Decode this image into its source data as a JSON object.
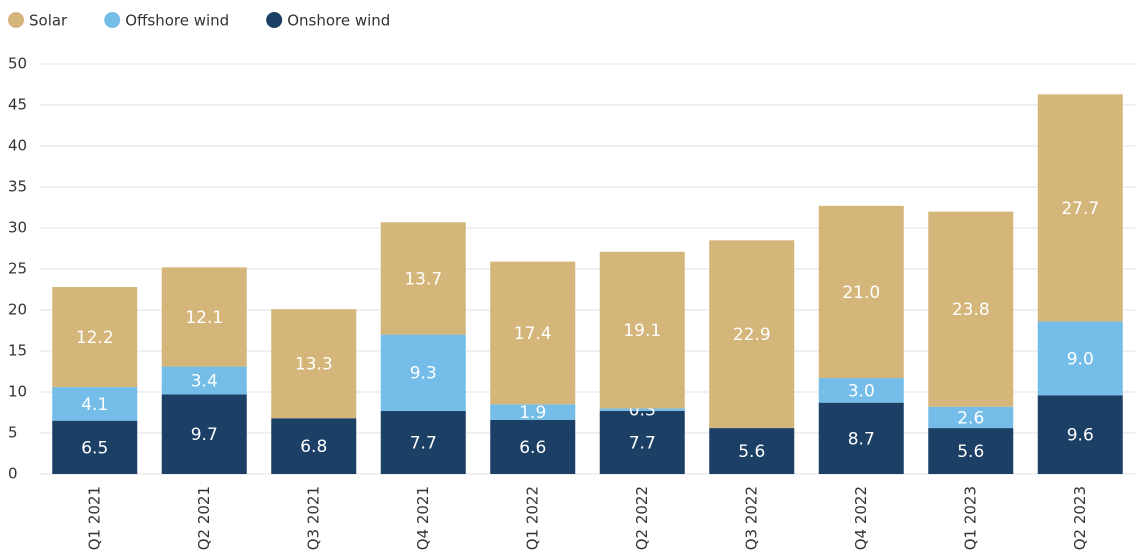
{
  "chart_data": {
    "type": "stacked_bar",
    "categories": [
      "Q1 2021",
      "Q2 2021",
      "Q3 2021",
      "Q4 2021",
      "Q1 2022",
      "Q2 2022",
      "Q3 2022",
      "Q4 2022",
      "Q1 2023",
      "Q2 2023"
    ],
    "series": [
      {
        "name": "Onshore wind",
        "color": "#1c3f66",
        "values": [
          6.5,
          9.7,
          6.8,
          7.7,
          6.6,
          7.7,
          5.6,
          8.7,
          5.6,
          9.6
        ],
        "value_labels": [
          "6.5",
          "9.7",
          "6.8",
          "7.7",
          "6.6",
          "7.7",
          "5.6",
          "8.7",
          "5.6",
          "9.6"
        ]
      },
      {
        "name": "Offshore wind",
        "color": "#74bde9",
        "values": [
          4.1,
          3.4,
          null,
          9.3,
          1.9,
          0.3,
          null,
          3.0,
          2.6,
          9.0
        ],
        "value_labels": [
          "4.1",
          "3.4",
          null,
          "9.3",
          "1.9",
          "0.3",
          null,
          "3.0",
          "2.6",
          "9.0"
        ]
      },
      {
        "name": "Solar",
        "color": "#d4b57a",
        "values": [
          12.2,
          12.1,
          13.3,
          13.7,
          17.4,
          19.1,
          22.9,
          21.0,
          23.8,
          27.7
        ],
        "value_labels": [
          "12.2",
          "12.1",
          "13.3",
          "13.7",
          "17.4",
          "19.1",
          "22.9",
          "21.0",
          "23.8",
          "27.7"
        ]
      }
    ],
    "legend_order": [
      2,
      1,
      0
    ],
    "ylim": [
      0,
      50
    ],
    "yticks": [
      0,
      5,
      10,
      15,
      20,
      25,
      30,
      35,
      40,
      45,
      50
    ],
    "grid": true
  }
}
